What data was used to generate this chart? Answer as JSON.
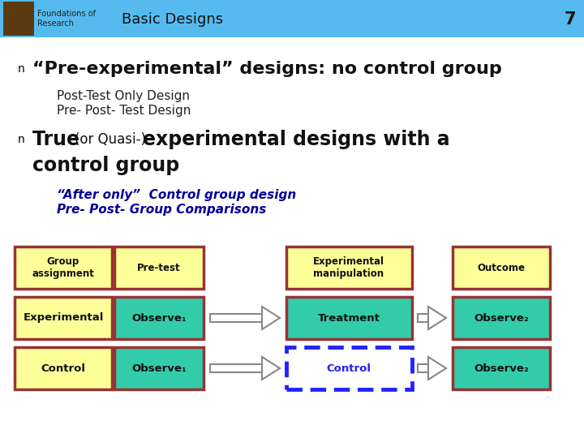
{
  "header_bg": "#55BBEE",
  "white_bg": "#ffffff",
  "header_text": "Basic Designs",
  "page_num": "7",
  "header_title_left1": "Foundations of",
  "header_title_left2": "Research",
  "bullet1": "“Pre-experimental” designs: no control group",
  "sub1a": "Post-Test Only Design",
  "sub1b": "Pre- Post- Test Design",
  "bullet2_true": "True ",
  "bullet2_quasi": "(or Quasi-)",
  "bullet2_exp": "experimental designs with a",
  "bullet2_line2": "control group",
  "sub2a": "“After only”  Control group design",
  "sub2b": "Pre- Post- Group Comparisons",
  "yellow": "#FFFF99",
  "green": "#33CCAA",
  "dark_red": "#993333",
  "blue_dash": "#2222FF",
  "table_header_labels": [
    "Group\nassignment",
    "Pre-test",
    "Experimental\nmanipulation",
    "Outcome"
  ],
  "row1_labels": [
    "Experimental",
    "Observe₁",
    "Treatment",
    "Observe₂"
  ],
  "row2_labels": [
    "Control",
    "Observe₁",
    "Control",
    "Observe₂"
  ]
}
